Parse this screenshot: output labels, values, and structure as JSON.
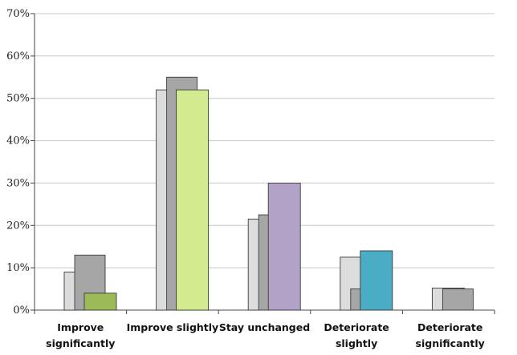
{
  "chart_data": {
    "type": "bar",
    "categories": [
      [
        "Improve",
        "significantly"
      ],
      [
        "Improve slightly"
      ],
      [
        "Stay unchanged"
      ],
      [
        "Deteriorate",
        "slightly"
      ],
      [
        "Deteriorate",
        "significantly"
      ]
    ],
    "series": [
      {
        "values": [
          9,
          52,
          21.5,
          12.5,
          5.2
        ]
      },
      {
        "values": [
          13,
          55,
          22.5,
          5,
          5
        ]
      },
      {
        "values": [
          4,
          52,
          30,
          14,
          null
        ]
      }
    ],
    "highlight_colors": [
      "#9bbb59",
      "#d3ea8f",
      "#b3a2c7",
      "#4bacc6",
      null
    ],
    "base_colors": [
      "#dcdcdc",
      "#a6a6a6"
    ],
    "title": "",
    "xlabel": "",
    "ylabel": "",
    "ylim": [
      0,
      70
    ],
    "yticks": [
      "0%",
      "10%",
      "20%",
      "30%",
      "40%",
      "50%",
      "60%",
      "70%"
    ],
    "grid": true,
    "legend": "none"
  }
}
